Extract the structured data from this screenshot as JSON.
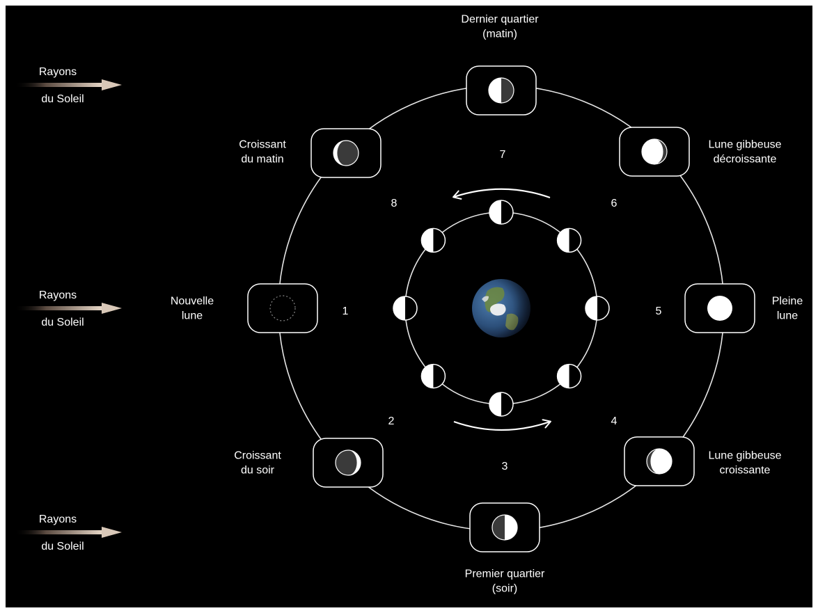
{
  "colors": {
    "background": "#000000",
    "frame": "#ffffff",
    "line": "#e6e6e6",
    "moon_lit": "#ffffff",
    "moon_dark": "#3a3a3a",
    "arrow_tip": "#d9c8b8"
  },
  "sun_rays": [
    {
      "line1": "Rayons",
      "line2": "du Soleil"
    },
    {
      "line1": "Rayons",
      "line2": "du Soleil"
    },
    {
      "line1": "Rayons",
      "line2": "du Soleil"
    }
  ],
  "phases": [
    {
      "number": "1",
      "name_lines": [
        "Nouvelle",
        "lune"
      ],
      "icon": "new-moon-icon",
      "illumination": 0.0
    },
    {
      "number": "2",
      "name_lines": [
        "Croissant",
        "du soir"
      ],
      "icon": "waxing-crescent-icon",
      "illumination": 0.15
    },
    {
      "number": "3",
      "name_lines": [
        "Premier quartier",
        "(soir)"
      ],
      "icon": "first-quarter-icon",
      "illumination": 0.5
    },
    {
      "number": "4",
      "name_lines": [
        "Lune gibbeuse",
        "croissante"
      ],
      "icon": "waxing-gibbous-icon",
      "illumination": 0.85
    },
    {
      "number": "5",
      "name_lines": [
        "Pleine",
        "lune"
      ],
      "icon": "full-moon-icon",
      "illumination": 1.0
    },
    {
      "number": "6",
      "name_lines": [
        "Lune gibbeuse",
        "décroissante"
      ],
      "icon": "waning-gibbous-icon",
      "illumination": 0.85
    },
    {
      "number": "7",
      "name_lines": [
        "Dernier quartier",
        "(matin)"
      ],
      "icon": "last-quarter-icon",
      "illumination": 0.5
    },
    {
      "number": "8",
      "name_lines": [
        "Croissant",
        "du matin"
      ],
      "icon": "waning-crescent-icon",
      "illumination": 0.15
    }
  ],
  "center": {
    "icon": "earth-icon"
  },
  "orbit_arrows": [
    "counterclockwise-arrow-icon",
    "counterclockwise-arrow-icon"
  ]
}
